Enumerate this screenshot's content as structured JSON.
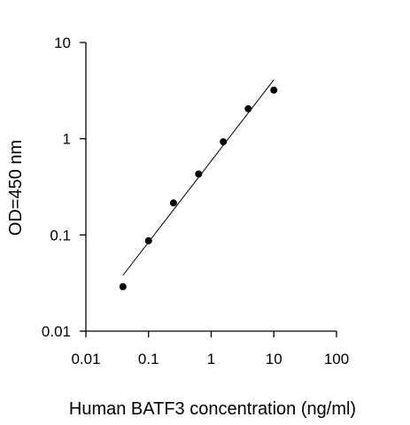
{
  "chart_data": {
    "type": "scatter",
    "title": "",
    "xlabel": "Human BATF3 concentration (ng/ml)",
    "ylabel": "OD=450 nm",
    "x_scale": "log",
    "y_scale": "log",
    "xlim": [
      0.01,
      100
    ],
    "ylim": [
      0.01,
      10
    ],
    "x_ticks": [
      0.01,
      0.1,
      1,
      10,
      100
    ],
    "x_tick_labels": [
      "0.01",
      "0.1",
      "1",
      "10",
      "100"
    ],
    "y_ticks": [
      0.01,
      0.1,
      1,
      10
    ],
    "y_tick_labels": [
      "0.01",
      "0.1",
      "1",
      "10"
    ],
    "grid": false,
    "legend": "none",
    "series": [
      {
        "x": [
          0.039,
          0.1,
          0.25,
          0.63,
          1.56,
          3.9,
          10
        ],
        "y": [
          0.029,
          0.087,
          0.215,
          0.43,
          0.93,
          2.05,
          3.2
        ]
      }
    ],
    "fit_line": {
      "x": [
        0.039,
        10
      ],
      "y": [
        0.038,
        4.1
      ]
    },
    "colors": {
      "marker": "#000000",
      "line": "#000000",
      "axis": "#000000"
    }
  }
}
